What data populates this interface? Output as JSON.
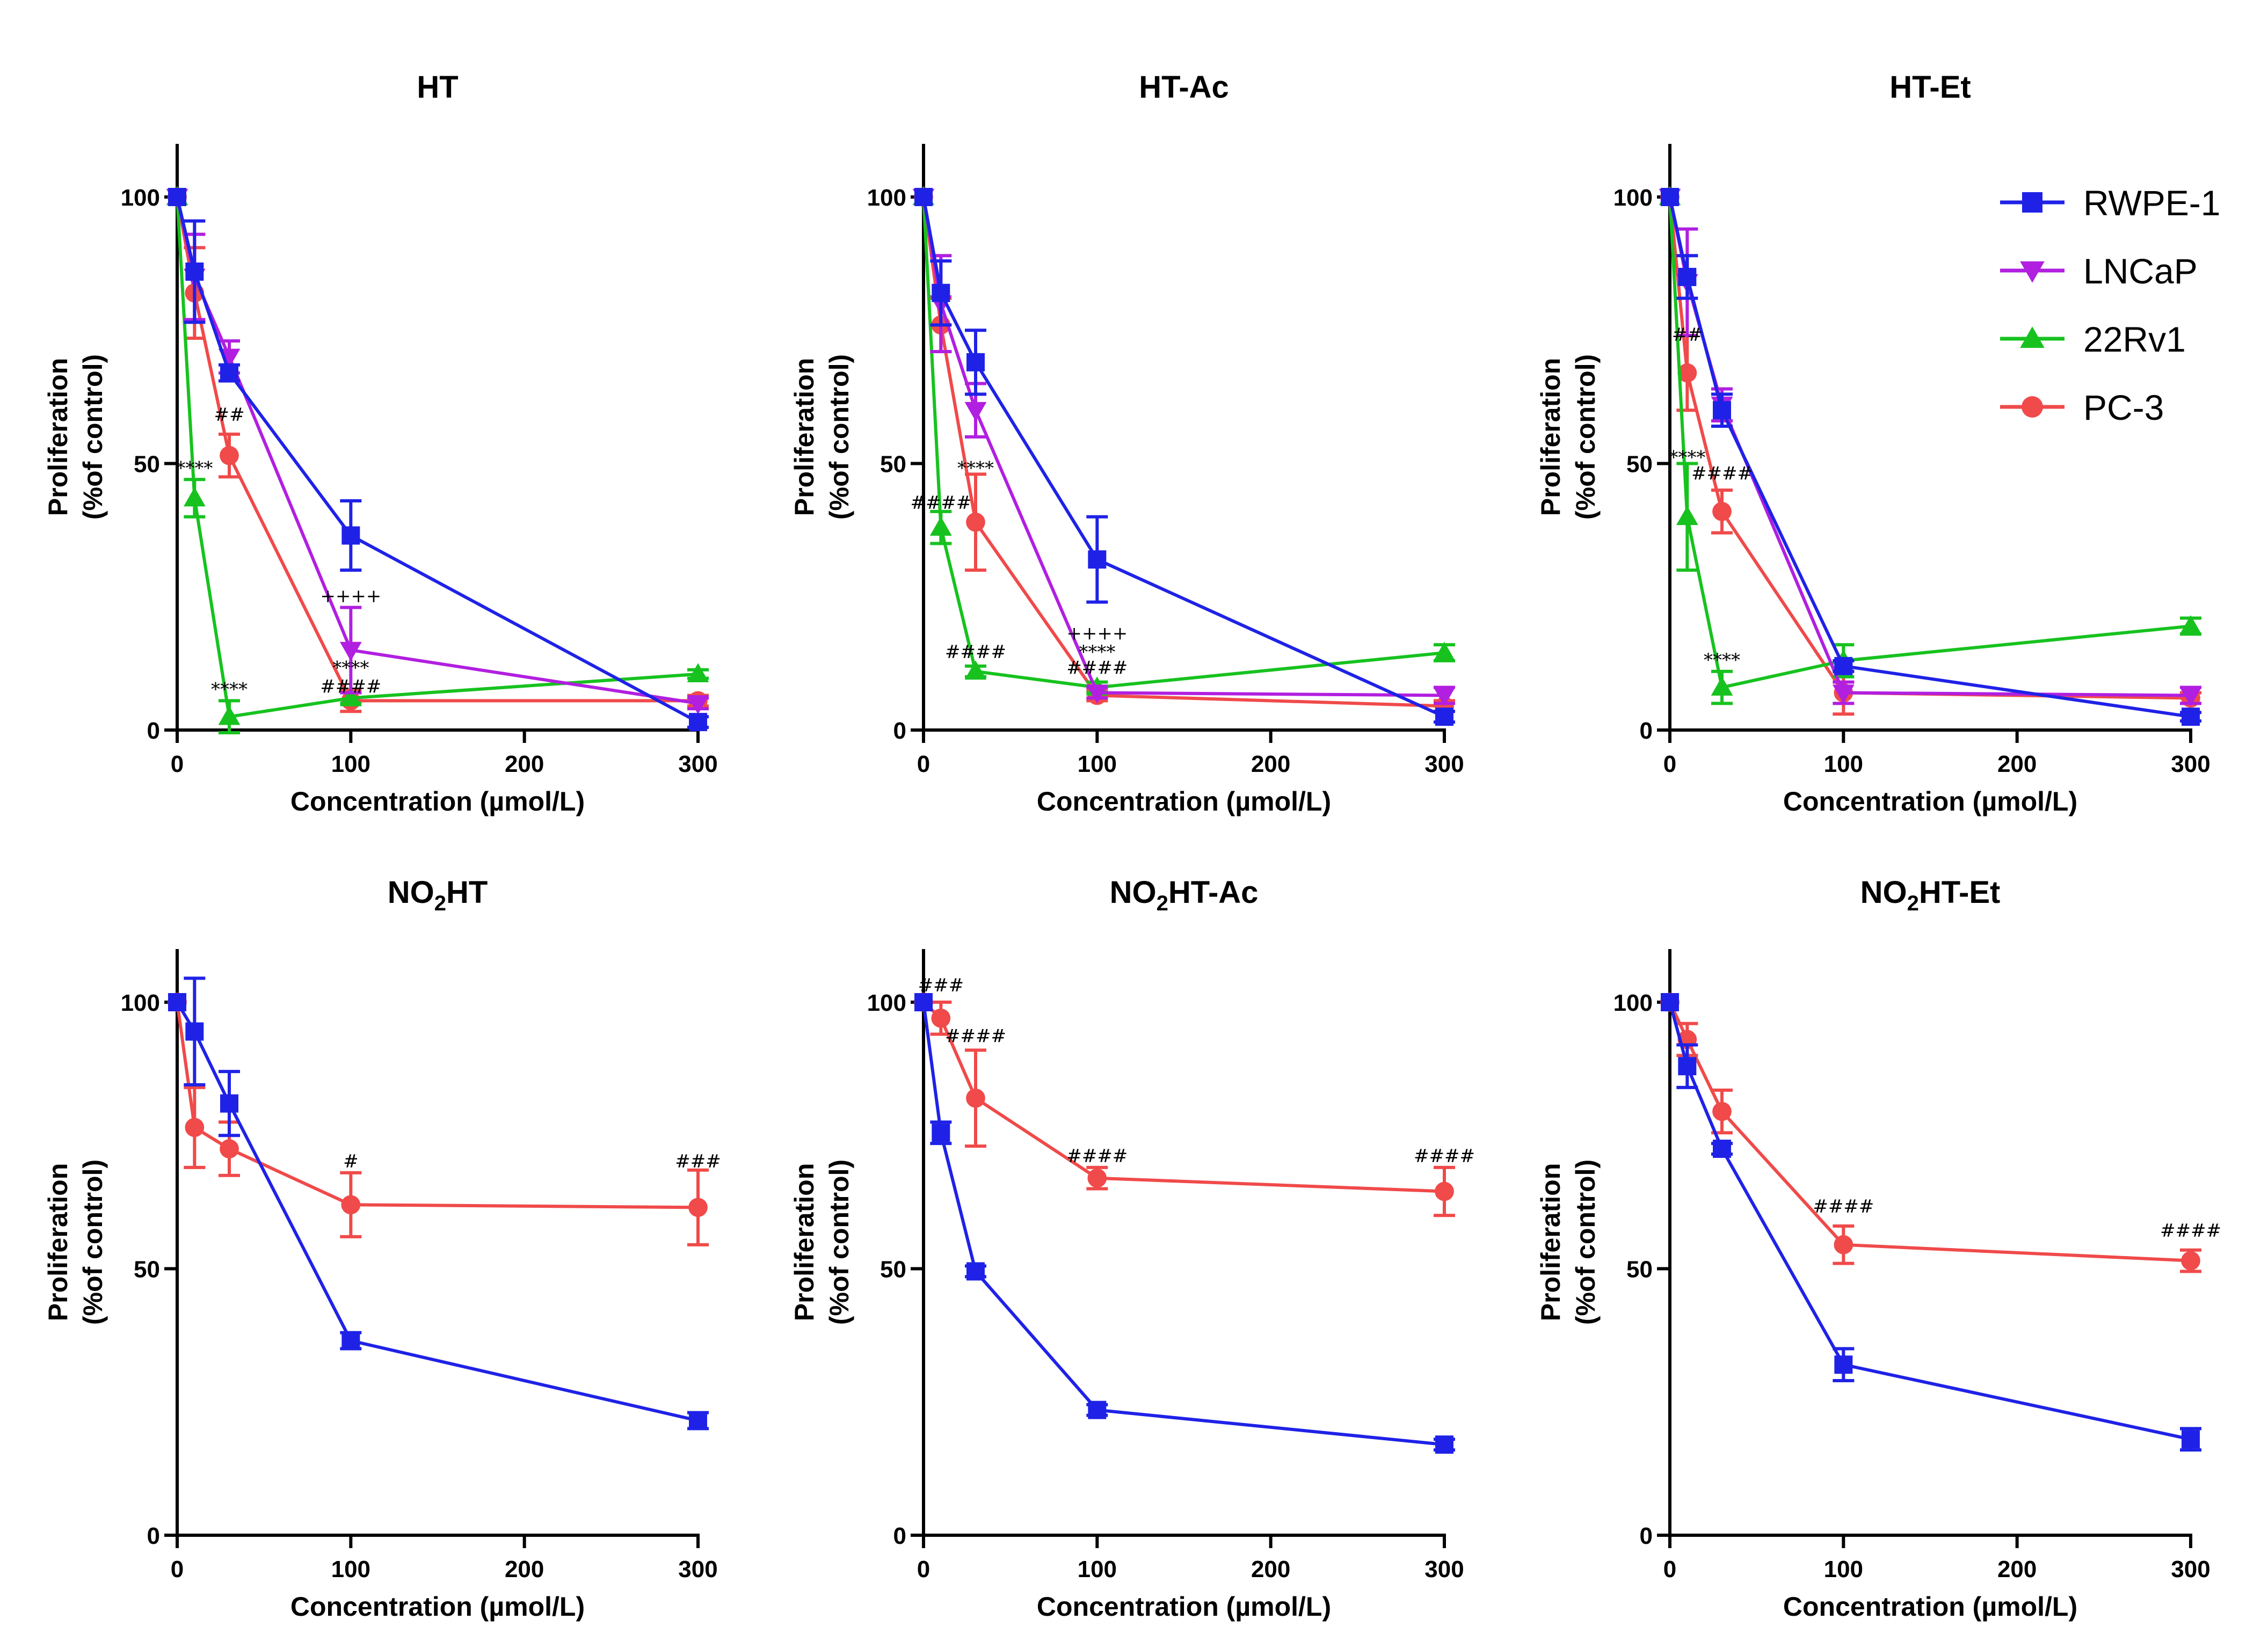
{
  "figure": {
    "legend": [
      {
        "name": "RWPE-1",
        "color": "#1f22e6",
        "marker": "square"
      },
      {
        "name": "LNCaP",
        "color": "#b11fe0",
        "marker": "triangle-down"
      },
      {
        "name": "22Rv1",
        "color": "#17c21f",
        "marker": "triangle-up"
      },
      {
        "name": "PC-3",
        "color": "#f04a4a",
        "marker": "circle"
      }
    ]
  },
  "chart_data": [
    {
      "type": "line",
      "title": "HT",
      "xlabel": "Concentration (µmol/L)",
      "ylabel_line1": "Proliferation",
      "ylabel_line2": "(%of control)",
      "xlim": [
        0,
        300
      ],
      "ylim": [
        0,
        110
      ],
      "xticks": [
        0,
        100,
        200,
        300
      ],
      "yticks": [
        0,
        50,
        100
      ],
      "x": [
        0,
        10,
        30,
        100,
        300
      ],
      "series": [
        {
          "name": "RWPE-1",
          "values": [
            100,
            86,
            67,
            36.5,
            1.5
          ],
          "err": [
            0,
            9.5,
            1.5,
            6.5,
            1
          ]
        },
        {
          "name": "LNCaP",
          "values": [
            100,
            85,
            70,
            15,
            5
          ],
          "err": [
            0,
            8,
            3,
            8,
            1
          ]
        },
        {
          "name": "22Rv1",
          "values": [
            100,
            43.5,
            2.5,
            6,
            10.5
          ],
          "err": [
            0,
            3.5,
            3,
            1,
            0.8
          ]
        },
        {
          "name": "PC-3",
          "values": [
            100,
            82,
            51.5,
            5.5,
            5.5
          ],
          "err": [
            0,
            8.5,
            4,
            2,
            1
          ]
        }
      ],
      "annotations": [
        {
          "text": "****",
          "x": 10,
          "y": 48
        },
        {
          "text": "##",
          "x": 30,
          "y": 58
        },
        {
          "text": "****",
          "x": 30,
          "y": 6.5
        },
        {
          "text": "++++",
          "x": 100,
          "y": 24
        },
        {
          "text": "****",
          "x": 100,
          "y": 10.5
        },
        {
          "text": "####",
          "x": 100,
          "y": 7
        }
      ]
    },
    {
      "type": "line",
      "title": "HT-Ac",
      "xlabel": "Concentration (µmol/L)",
      "ylabel_line1": "Proliferation",
      "ylabel_line2": "(%of control)",
      "xlim": [
        0,
        300
      ],
      "ylim": [
        0,
        110
      ],
      "xticks": [
        0,
        100,
        200,
        300
      ],
      "yticks": [
        0,
        50,
        100
      ],
      "x": [
        0,
        10,
        30,
        100,
        300
      ],
      "series": [
        {
          "name": "RWPE-1",
          "values": [
            100,
            82,
            69,
            32,
            2.5
          ],
          "err": [
            0,
            6,
            6,
            8,
            1
          ]
        },
        {
          "name": "LNCaP",
          "values": [
            100,
            80,
            60,
            7,
            6.5
          ],
          "err": [
            0,
            9,
            5,
            1,
            1.5
          ]
        },
        {
          "name": "22Rv1",
          "values": [
            100,
            38,
            11,
            8,
            14.5
          ],
          "err": [
            0,
            3,
            1,
            1,
            1.5
          ]
        },
        {
          "name": "PC-3",
          "values": [
            100,
            76,
            39,
            6.5,
            4.5
          ],
          "err": [
            0,
            5,
            9,
            1,
            1
          ]
        }
      ],
      "annotations": [
        {
          "text": "####",
          "x": 10,
          "y": 41.5
        },
        {
          "text": "****",
          "x": 30,
          "y": 48
        },
        {
          "text": "####",
          "x": 30,
          "y": 13.5
        },
        {
          "text": "++++",
          "x": 100,
          "y": 17
        },
        {
          "text": "****",
          "x": 100,
          "y": 13.5
        },
        {
          "text": "####",
          "x": 100,
          "y": 10.5
        }
      ]
    },
    {
      "type": "line",
      "title": "HT-Et",
      "xlabel": "Concentration (µmol/L)",
      "ylabel_line1": "Proliferation",
      "ylabel_line2": "(%of control)",
      "xlim": [
        0,
        300
      ],
      "ylim": [
        0,
        110
      ],
      "xticks": [
        0,
        100,
        200,
        300
      ],
      "yticks": [
        0,
        50,
        100
      ],
      "x": [
        0,
        10,
        30,
        100,
        300
      ],
      "series": [
        {
          "name": "RWPE-1",
          "values": [
            100,
            85,
            60,
            12,
            2.5
          ],
          "err": [
            0,
            4,
            3,
            1,
            0.8
          ]
        },
        {
          "name": "LNCaP",
          "values": [
            100,
            84,
            61,
            7,
            6.5
          ],
          "err": [
            0,
            10,
            3,
            2,
            1.5
          ]
        },
        {
          "name": "22Rv1",
          "values": [
            100,
            40,
            8,
            13,
            19.5
          ],
          "err": [
            0,
            10,
            3,
            3,
            1.5
          ]
        },
        {
          "name": "PC-3",
          "values": [
            100,
            67,
            41,
            7,
            6
          ],
          "err": [
            0,
            7,
            4,
            4,
            1
          ]
        }
      ],
      "annotations": [
        {
          "text": "##",
          "x": 10,
          "y": 73
        },
        {
          "text": "****",
          "x": 10,
          "y": 50
        },
        {
          "text": "####",
          "x": 30,
          "y": 47
        },
        {
          "text": "****",
          "x": 30,
          "y": 12
        }
      ]
    },
    {
      "type": "line",
      "title": "NO2HT",
      "title_parts": [
        "NO",
        "2",
        "HT"
      ],
      "xlabel": "Concentration (µmol/L)",
      "ylabel_line1": "Proliferation",
      "ylabel_line2": "(%of control)",
      "xlim": [
        0,
        300
      ],
      "ylim": [
        0,
        110
      ],
      "xticks": [
        0,
        100,
        200,
        300
      ],
      "yticks": [
        0,
        50,
        100
      ],
      "x": [
        0,
        10,
        30,
        100,
        300
      ],
      "series": [
        {
          "name": "RWPE-1",
          "values": [
            100,
            94.5,
            81,
            36.5,
            21.5
          ],
          "err": [
            0,
            10,
            6,
            1.5,
            1.5
          ]
        },
        {
          "name": "PC-3",
          "values": [
            100,
            76.5,
            72.5,
            62,
            61.5
          ],
          "err": [
            0,
            7.5,
            5,
            6,
            7
          ]
        }
      ],
      "annotations": [
        {
          "text": "#",
          "x": 100,
          "y": 69
        },
        {
          "text": "###",
          "x": 300,
          "y": 69
        }
      ]
    },
    {
      "type": "line",
      "title": "NO2HT-Ac",
      "title_parts": [
        "NO",
        "2",
        "HT-Ac"
      ],
      "xlabel": "Concentration (µmol/L)",
      "ylabel_line1": "Proliferation",
      "ylabel_line2": "(%of control)",
      "xlim": [
        0,
        300
      ],
      "ylim": [
        0,
        110
      ],
      "xticks": [
        0,
        100,
        200,
        300
      ],
      "yticks": [
        0,
        50,
        100
      ],
      "x": [
        0,
        10,
        30,
        100,
        300
      ],
      "series": [
        {
          "name": "RWPE-1",
          "values": [
            100,
            75.5,
            49.5,
            23.5,
            17
          ],
          "err": [
            0,
            2,
            1,
            1,
            1
          ]
        },
        {
          "name": "PC-3",
          "values": [
            100,
            97,
            82,
            67,
            64.5
          ],
          "err": [
            0,
            3,
            9,
            2,
            4.5
          ]
        }
      ],
      "annotations": [
        {
          "text": "###",
          "x": 10,
          "y": 102
        },
        {
          "text": "####",
          "x": 30,
          "y": 92.5
        },
        {
          "text": "####",
          "x": 100,
          "y": 70
        },
        {
          "text": "####",
          "x": 300,
          "y": 70
        }
      ]
    },
    {
      "type": "line",
      "title": "NO2HT-Et",
      "title_parts": [
        "NO",
        "2",
        "HT-Et"
      ],
      "xlabel": "Concentration (µmol/L)",
      "ylabel_line1": "Proliferation",
      "ylabel_line2": "(%of control)",
      "xlim": [
        0,
        300
      ],
      "ylim": [
        0,
        110
      ],
      "xticks": [
        0,
        100,
        200,
        300
      ],
      "yticks": [
        0,
        50,
        100
      ],
      "x": [
        0,
        10,
        30,
        100,
        300
      ],
      "series": [
        {
          "name": "RWPE-1",
          "values": [
            100,
            88,
            72.5,
            32,
            18
          ],
          "err": [
            0,
            4,
            1,
            3,
            2
          ]
        },
        {
          "name": "PC-3",
          "values": [
            100,
            93,
            79.5,
            54.5,
            51.5
          ],
          "err": [
            0,
            3,
            4,
            3.5,
            2
          ]
        }
      ],
      "annotations": [
        {
          "text": "####",
          "x": 100,
          "y": 60.5
        },
        {
          "text": "####",
          "x": 300,
          "y": 56
        }
      ]
    }
  ]
}
